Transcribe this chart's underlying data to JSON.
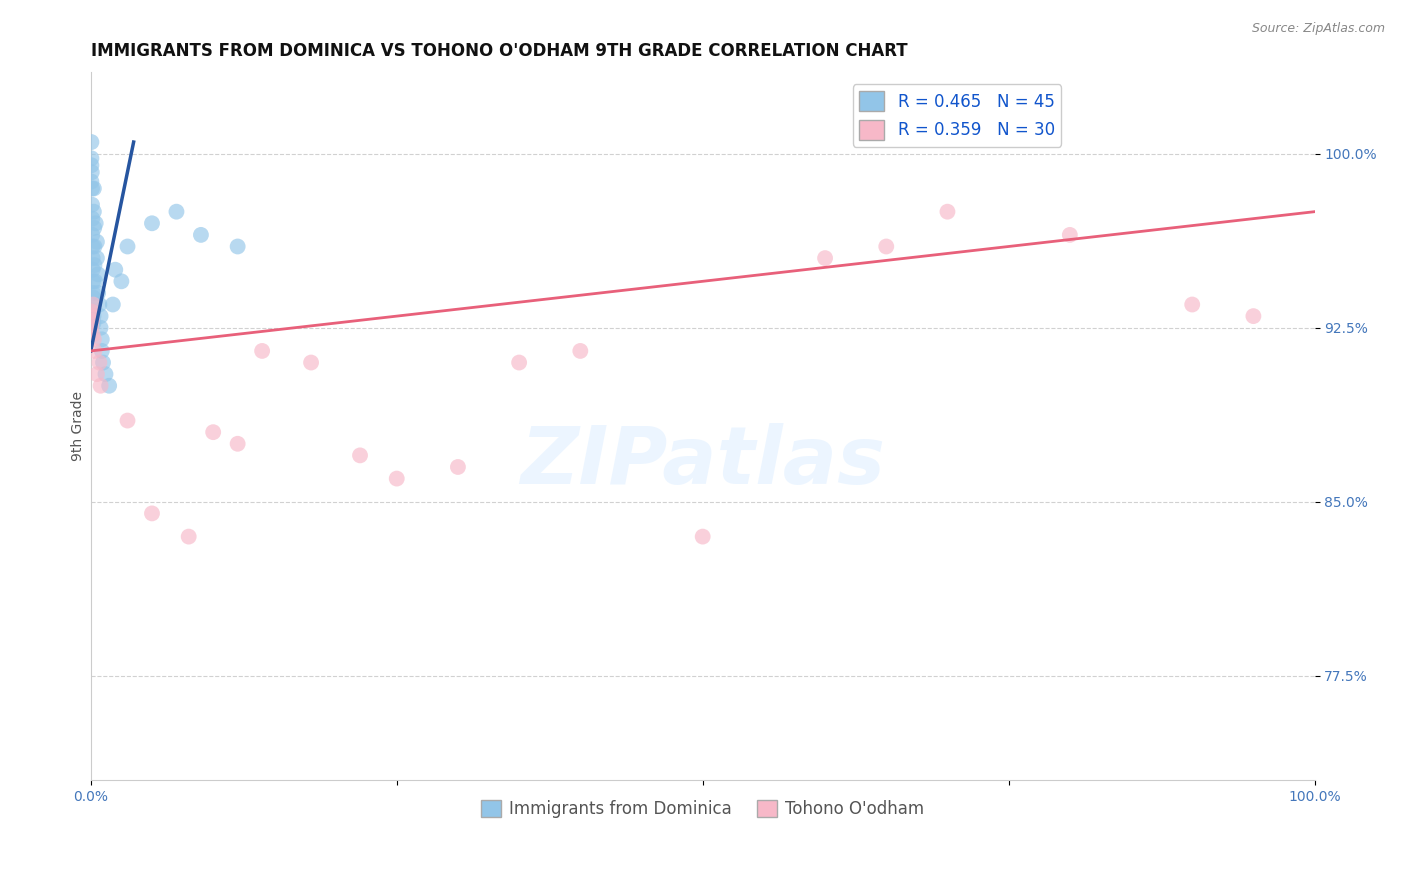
{
  "title": "IMMIGRANTS FROM DOMINICA VS TOHONO O'ODHAM 9TH GRADE CORRELATION CHART",
  "source_text": "Source: ZipAtlas.com",
  "ylabel": "9th Grade",
  "xlim": [
    0.0,
    100.0
  ],
  "ylim": [
    73.0,
    103.5
  ],
  "yticks": [
    77.5,
    85.0,
    92.5,
    100.0
  ],
  "xticks": [
    0.0,
    25.0,
    50.0,
    75.0,
    100.0
  ],
  "xtick_labels": [
    "0.0%",
    "",
    "",
    "",
    "100.0%"
  ],
  "ytick_labels": [
    "77.5%",
    "85.0%",
    "92.5%",
    "100.0%"
  ],
  "blue_R": 0.465,
  "blue_N": 45,
  "pink_R": 0.359,
  "pink_N": 30,
  "legend_label_blue": "Immigrants from Dominica",
  "legend_label_pink": "Tohono O'odham",
  "blue_color": "#92c5e8",
  "pink_color": "#f7b8c8",
  "blue_line_color": "#2655a0",
  "pink_line_color": "#e8607a",
  "blue_scatter_x": [
    0.05,
    0.05,
    0.08,
    0.1,
    0.1,
    0.12,
    0.12,
    0.15,
    0.15,
    0.15,
    0.18,
    0.18,
    0.2,
    0.2,
    0.22,
    0.22,
    0.25,
    0.25,
    0.28,
    0.3,
    0.3,
    0.35,
    0.4,
    0.5,
    0.5,
    0.6,
    0.6,
    0.7,
    0.8,
    0.8,
    0.9,
    0.9,
    1.0,
    1.2,
    1.5,
    1.8,
    2.0,
    2.5,
    3.0,
    5.0,
    7.0,
    9.0,
    12.0,
    0.05,
    0.05
  ],
  "blue_scatter_y": [
    100.5,
    99.8,
    99.2,
    98.5,
    97.8,
    97.2,
    96.5,
    96.0,
    95.5,
    95.0,
    94.5,
    94.0,
    93.8,
    93.2,
    93.0,
    92.7,
    98.5,
    97.5,
    96.8,
    96.0,
    95.2,
    94.5,
    97.0,
    96.2,
    95.5,
    94.8,
    94.0,
    93.5,
    93.0,
    92.5,
    92.0,
    91.5,
    91.0,
    90.5,
    90.0,
    93.5,
    95.0,
    94.5,
    96.0,
    97.0,
    97.5,
    96.5,
    96.0,
    99.5,
    98.8
  ],
  "pink_scatter_x": [
    0.05,
    0.05,
    0.1,
    0.1,
    0.15,
    0.2,
    0.25,
    0.3,
    0.5,
    0.7,
    0.8,
    3.0,
    5.0,
    8.0,
    10.0,
    12.0,
    14.0,
    18.0,
    22.0,
    25.0,
    30.0,
    35.0,
    40.0,
    50.0,
    60.0,
    65.0,
    70.0,
    80.0,
    90.0,
    95.0
  ],
  "pink_scatter_y": [
    93.2,
    92.5,
    93.0,
    92.8,
    92.2,
    93.5,
    92.0,
    91.5,
    90.5,
    91.0,
    90.0,
    88.5,
    84.5,
    83.5,
    88.0,
    87.5,
    91.5,
    91.0,
    87.0,
    86.0,
    86.5,
    91.0,
    91.5,
    83.5,
    95.5,
    96.0,
    97.5,
    96.5,
    93.5,
    93.0
  ],
  "watermark_text": "ZIPatlas",
  "title_fontsize": 12,
  "axis_label_fontsize": 10,
  "tick_fontsize": 10,
  "legend_fontsize": 12,
  "blue_line_x0": 0.0,
  "blue_line_y0": 91.5,
  "blue_line_x1": 3.5,
  "blue_line_y1": 100.5,
  "pink_line_x0": 0.0,
  "pink_line_y0": 91.5,
  "pink_line_x1": 100.0,
  "pink_line_y1": 97.5
}
